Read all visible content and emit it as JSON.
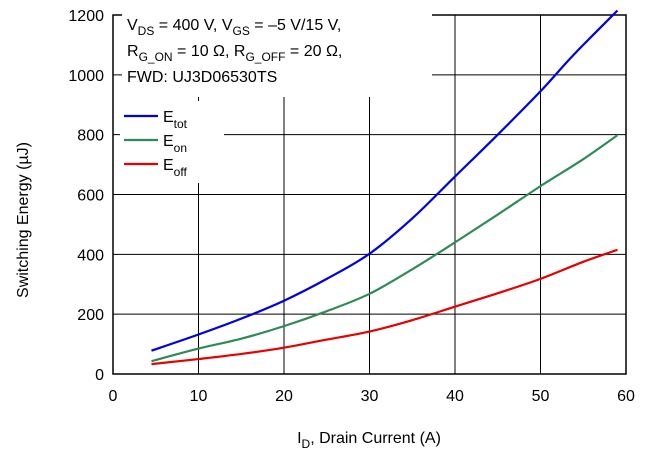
{
  "chart_data": {
    "type": "line",
    "xlabel": "I_D, Drain Current (A)",
    "xlabel_main": "I",
    "xlabel_sub": "D",
    "xlabel_rest": ", Drain Current (A)",
    "ylabel": "Switching Energy (µJ)",
    "xlim": [
      0,
      60
    ],
    "ylim": [
      0,
      1200
    ],
    "xticks": [
      "0",
      "10",
      "20",
      "30",
      "40",
      "50",
      "60"
    ],
    "yticks": [
      "0",
      "200",
      "400",
      "600",
      "800",
      "1000",
      "1200"
    ],
    "grid": true,
    "annotation": {
      "line1": "V_DS = 400 V, V_GS = –5 V/15 V,",
      "line2": "R_G_ON = 10 Ω, R_G_OFF = 20 Ω,",
      "line3": "FWD: UJ3D06530TS",
      "parts": {
        "v1": "V",
        "v1_sub": "DS",
        "v1_rest": " = 400 V, V",
        "v2_sub": "GS",
        "v2_rest": " = –5 V/15 V,",
        "r1": "R",
        "r1_sub": "G_ON",
        "r1_rest": " = 10 Ω, R",
        "r2_sub": "G_OFF",
        "r2_rest": " = 20 Ω,",
        "fwd": "FWD: UJ3D06530TS"
      }
    },
    "legend_position": "top-left",
    "series": [
      {
        "name": "E_tot",
        "label_main": "E",
        "label_sub": "tot",
        "color": "#0000e6",
        "x": [
          4.5,
          10,
          15,
          20,
          25,
          30,
          35,
          40,
          45,
          50,
          53,
          55,
          59
        ],
        "values": [
          78,
          132,
          185,
          245,
          318,
          402,
          520,
          660,
          800,
          945,
          1040,
          1100,
          1215
        ]
      },
      {
        "name": "E_on",
        "label_main": "E",
        "label_sub": "on",
        "color": "#2e8b57",
        "x": [
          4.5,
          10,
          15,
          20,
          25,
          30,
          35,
          40,
          45,
          50,
          55,
          59
        ],
        "values": [
          43,
          85,
          118,
          160,
          210,
          268,
          350,
          440,
          533,
          628,
          718,
          798
        ]
      },
      {
        "name": "E_off",
        "label_main": "E",
        "label_sub": "off",
        "color": "#e60000",
        "x": [
          4.5,
          10,
          15,
          20,
          25,
          30,
          35,
          40,
          45,
          50,
          55,
          59
        ],
        "values": [
          33,
          50,
          67,
          88,
          115,
          142,
          180,
          225,
          270,
          318,
          375,
          415
        ]
      }
    ]
  }
}
